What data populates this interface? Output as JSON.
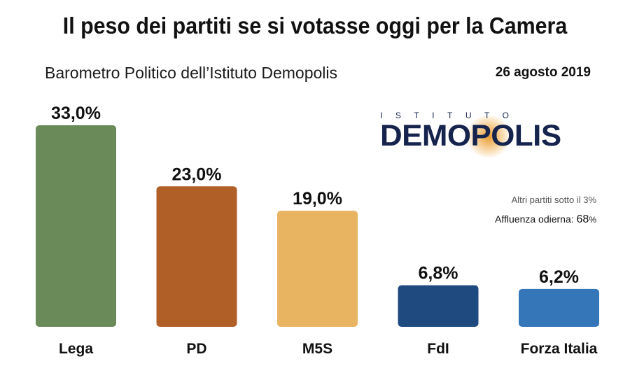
{
  "header": {
    "title": "Il peso dei partiti se si votasse oggi per la Camera",
    "subtitle": "Barometro Politico dell’Istituto Demopolis",
    "date": "26 agosto 2019"
  },
  "logo": {
    "top_text": "ISTITUTO",
    "main_text": "DEMOPOLIS"
  },
  "notes": {
    "other_parties": "Altri partiti sotto il 3%",
    "turnout_label": "Affluenza odierna:",
    "turnout_value": "68",
    "turnout_unit": "%"
  },
  "chart_data": {
    "type": "bar",
    "categories": [
      "Lega",
      "PD",
      "M5S",
      "FdI",
      "Forza Italia"
    ],
    "values": [
      33.0,
      23.0,
      19.0,
      6.8,
      6.2
    ],
    "value_labels": [
      "33,0%",
      "23,0%",
      "19,0%",
      "6,8%",
      "6,2%"
    ],
    "colors": [
      "#6b8a5a",
      "#b05f27",
      "#e8b462",
      "#1f4a7f",
      "#3576b8"
    ],
    "ylim": [
      0,
      33
    ],
    "grid": false,
    "legend": "none"
  }
}
